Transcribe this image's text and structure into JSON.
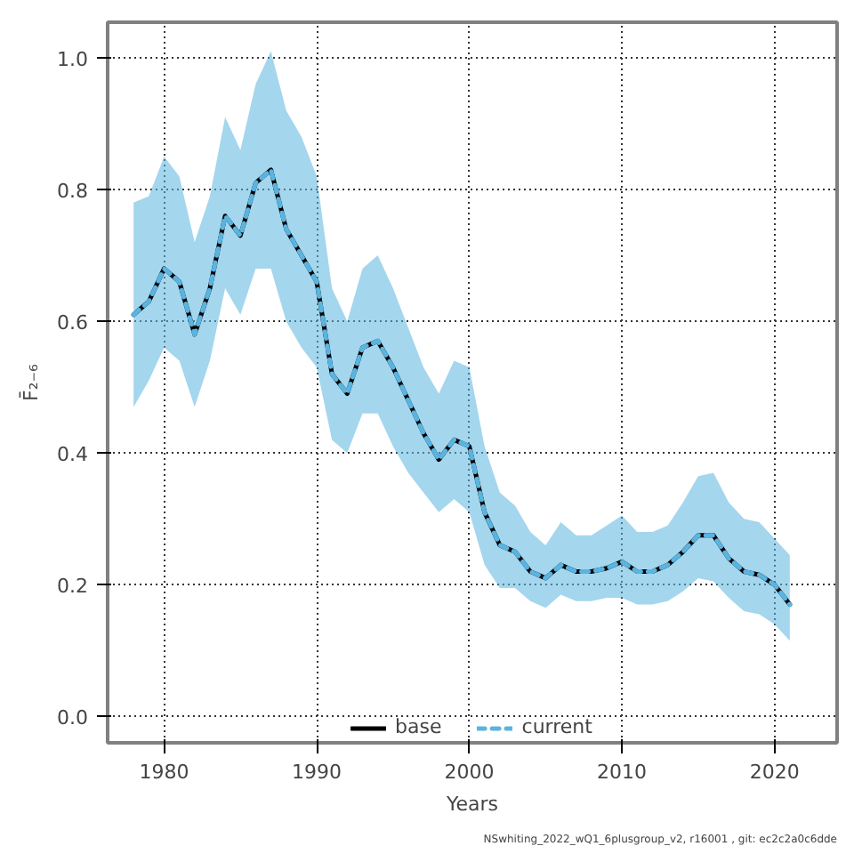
{
  "chart_data": {
    "type": "line",
    "xlabel": "Years",
    "ylabel": "F̄₂₋₆",
    "x": [
      1978,
      1979,
      1980,
      1981,
      1982,
      1983,
      1984,
      1985,
      1986,
      1987,
      1988,
      1989,
      1990,
      1991,
      1992,
      1993,
      1994,
      1995,
      1996,
      1997,
      1998,
      1999,
      2000,
      2001,
      2002,
      2003,
      2004,
      2005,
      2006,
      2007,
      2008,
      2009,
      2010,
      2011,
      2012,
      2013,
      2014,
      2015,
      2016,
      2017,
      2018,
      2019,
      2020,
      2021
    ],
    "series": [
      {
        "name": "base",
        "color": "#000000",
        "line_style": "solid",
        "values": [
          0.61,
          0.63,
          0.68,
          0.66,
          0.58,
          0.65,
          0.76,
          0.73,
          0.81,
          0.83,
          0.74,
          0.7,
          0.66,
          0.52,
          0.49,
          0.56,
          0.57,
          0.53,
          0.48,
          0.43,
          0.39,
          0.42,
          0.41,
          0.31,
          0.26,
          0.25,
          0.22,
          0.21,
          0.23,
          0.22,
          0.22,
          0.225,
          0.235,
          0.22,
          0.22,
          0.23,
          0.25,
          0.275,
          0.275,
          0.24,
          0.22,
          0.215,
          0.2,
          0.17
        ]
      },
      {
        "name": "current",
        "color": "#5ab4e0",
        "line_style": "dashed",
        "values": [
          0.61,
          0.63,
          0.68,
          0.66,
          0.58,
          0.65,
          0.76,
          0.73,
          0.81,
          0.83,
          0.74,
          0.7,
          0.66,
          0.52,
          0.49,
          0.56,
          0.57,
          0.53,
          0.48,
          0.43,
          0.39,
          0.42,
          0.41,
          0.31,
          0.26,
          0.25,
          0.22,
          0.21,
          0.23,
          0.22,
          0.22,
          0.225,
          0.235,
          0.22,
          0.22,
          0.23,
          0.25,
          0.275,
          0.275,
          0.24,
          0.22,
          0.215,
          0.2,
          0.17
        ],
        "upper": [
          0.78,
          0.79,
          0.85,
          0.82,
          0.72,
          0.79,
          0.91,
          0.86,
          0.96,
          1.01,
          0.92,
          0.88,
          0.82,
          0.65,
          0.6,
          0.68,
          0.7,
          0.65,
          0.59,
          0.53,
          0.49,
          0.54,
          0.53,
          0.41,
          0.34,
          0.32,
          0.28,
          0.26,
          0.295,
          0.275,
          0.275,
          0.29,
          0.305,
          0.28,
          0.28,
          0.29,
          0.325,
          0.365,
          0.37,
          0.325,
          0.3,
          0.295,
          0.27,
          0.245
        ],
        "lower": [
          0.47,
          0.51,
          0.56,
          0.54,
          0.47,
          0.54,
          0.65,
          0.61,
          0.68,
          0.68,
          0.6,
          0.56,
          0.53,
          0.42,
          0.4,
          0.46,
          0.46,
          0.41,
          0.37,
          0.34,
          0.31,
          0.33,
          0.31,
          0.23,
          0.195,
          0.195,
          0.175,
          0.165,
          0.185,
          0.175,
          0.175,
          0.18,
          0.18,
          0.17,
          0.17,
          0.175,
          0.19,
          0.21,
          0.205,
          0.18,
          0.16,
          0.155,
          0.14,
          0.115
        ]
      }
    ],
    "xlim": [
      1976.3,
      2024.1
    ],
    "ylim": [
      -0.04,
      1.054
    ],
    "xticks": [
      1980,
      1990,
      2000,
      2010,
      2020
    ],
    "yticks": [
      {
        "value": 0,
        "label": "0.0"
      },
      {
        "value": 0.2,
        "label": "0.2"
      },
      {
        "value": 0.4,
        "label": "0.4"
      },
      {
        "value": 0.6,
        "label": "0.6"
      },
      {
        "value": 0.8,
        "label": "0.8"
      },
      {
        "value": 1,
        "label": "1.0"
      }
    ],
    "grid": true,
    "legend": "bottom",
    "marker": "none",
    "annotations": [
      "NSwhiting_2022_wQ1_6plusgroup_v2, r16001 , git: ec2c2a0c6dde"
    ]
  }
}
